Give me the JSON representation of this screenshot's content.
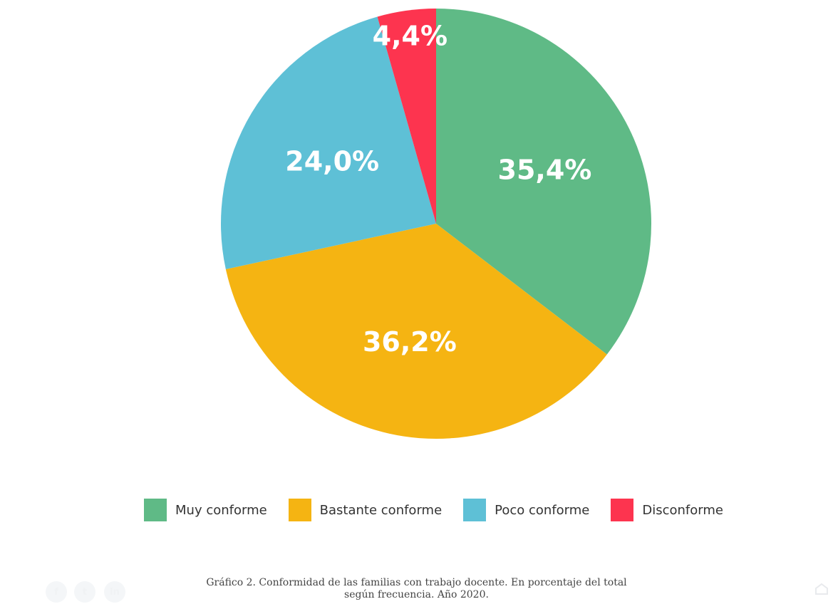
{
  "chart_data": {
    "type": "pie",
    "slices": [
      {
        "label": "Muy conforme",
        "value": 35.4,
        "display": "35,4%",
        "color": "#5fba86"
      },
      {
        "label": "Bastante conforme",
        "value": 36.2,
        "display": "36,2%",
        "color": "#f5b412"
      },
      {
        "label": "Poco conforme",
        "value": 24.0,
        "display": "24,0%",
        "color": "#5ec0d6"
      },
      {
        "label": "Disconforme",
        "value": 4.4,
        "display": "4,4%",
        "color": "#fd344f"
      }
    ],
    "start": "top",
    "direction": "clockwise",
    "legend_position": "bottom"
  },
  "caption": {
    "line1": "Gráfico 2. Conformidad de las familias con trabajo docente. En porcentaje del total",
    "line2": "según frecuencia. Año 2020."
  },
  "footer": {
    "social_icons": [
      "facebook-icon",
      "twitter-icon",
      "linkedin-icon"
    ],
    "brand_icon": "prezly-icon"
  }
}
